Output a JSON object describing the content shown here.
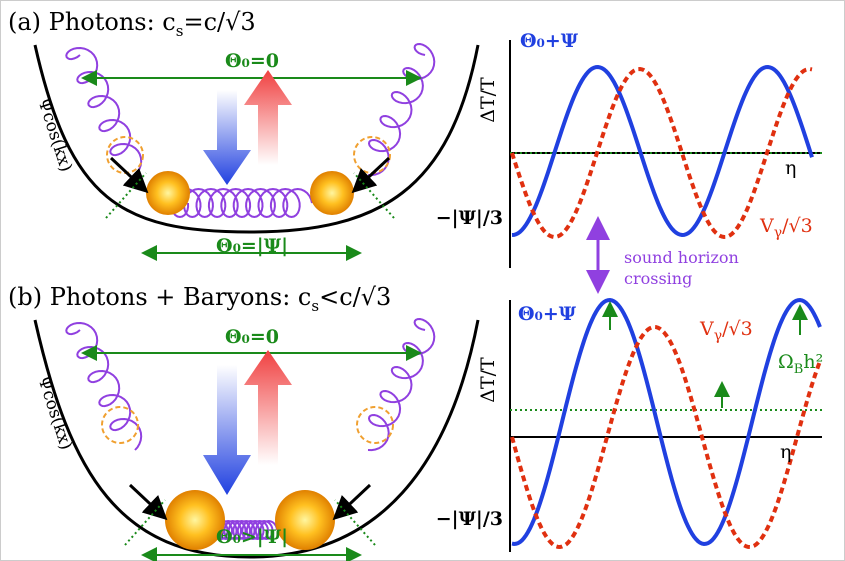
{
  "panel_a": {
    "title": "(a) Photons: c",
    "title_sub": "s",
    "title_end": "=c/√3",
    "theta_top": "Θ₀=0",
    "theta_bottom": "Θ₀=|Ψ|",
    "potential": "Ψcos(kx)",
    "y_axis": "ΔT/T",
    "x_axis": "η",
    "y_tick": "−|Ψ|/3",
    "blue_label": "Θ₀+Ψ",
    "red_label": "V",
    "red_sub": "γ",
    "red_end": "/√3"
  },
  "annotation": {
    "line1": "sound horizon",
    "line2": "crossing"
  },
  "panel_b": {
    "title": "(b) Photons + Baryons: c",
    "title_sub": "s",
    "title_end": "<c/√3",
    "theta_top": "Θ₀=0",
    "theta_bottom": "Θ₀>|Ψ|",
    "potential": "Ψcos(kx)",
    "y_axis": "ΔT/T",
    "x_axis": "η",
    "y_tick": "−|Ψ|/3",
    "blue_label": "Θ₀+Ψ",
    "red_label": "V",
    "red_sub": "γ",
    "red_end": "/√3",
    "green_label": "Ω",
    "green_sub": "B",
    "green_end": "h²"
  }
}
